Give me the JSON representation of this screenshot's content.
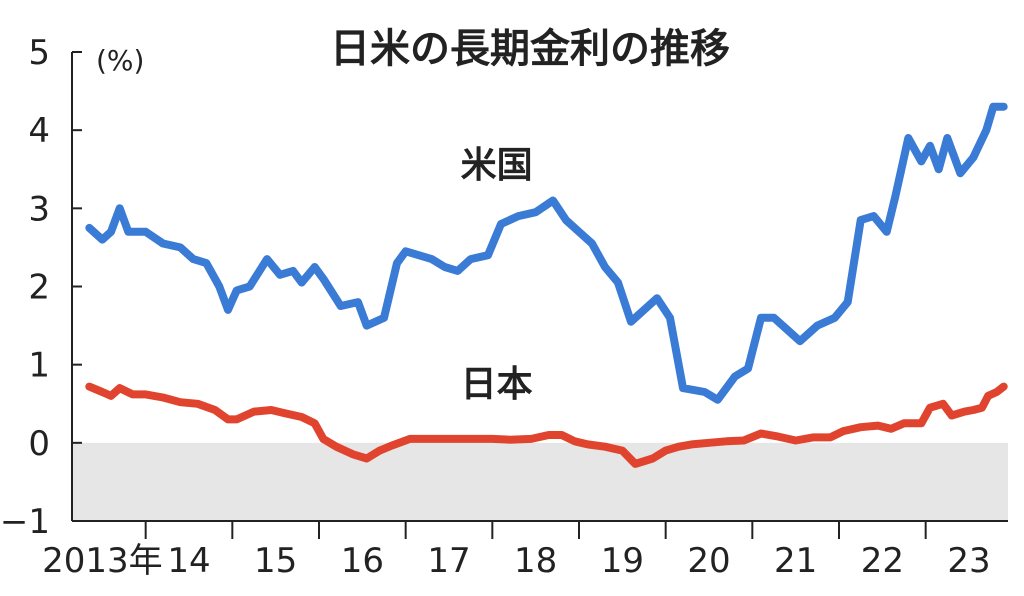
{
  "chart_data": {
    "type": "line",
    "title": "日米の長期金利の推移",
    "unit": "(%)",
    "xlabel": "",
    "ylabel": "",
    "ylim": [
      -1,
      5
    ],
    "xlim": [
      2013.15,
      2023.95
    ],
    "y_ticks": [
      5,
      4,
      3,
      2,
      1,
      0,
      -1
    ],
    "y_tick_labels": [
      "5",
      "4",
      "3",
      "2",
      "1",
      "0",
      "−1"
    ],
    "x_tick_positions": [
      2014,
      2015,
      2016,
      2017,
      2018,
      2019,
      2020,
      2021,
      2022,
      2023
    ],
    "x_labels": [
      {
        "x": 2013.5,
        "text": "2013年"
      },
      {
        "x": 2014.5,
        "text": "14"
      },
      {
        "x": 2015.5,
        "text": "15"
      },
      {
        "x": 2016.5,
        "text": "16"
      },
      {
        "x": 2017.5,
        "text": "17"
      },
      {
        "x": 2018.5,
        "text": "18"
      },
      {
        "x": 2019.5,
        "text": "19"
      },
      {
        "x": 2020.5,
        "text": "20"
      },
      {
        "x": 2021.5,
        "text": "21"
      },
      {
        "x": 2022.5,
        "text": "22"
      },
      {
        "x": 2023.5,
        "text": "23"
      }
    ],
    "negative_region_shaded": true,
    "colors": {
      "us": "#3a7bd5",
      "japan": "#e0442e",
      "negative_fill": "#e6e6e6",
      "axis": "#222222"
    },
    "series": [
      {
        "name": "米国",
        "label_at": {
          "x": 2018.05,
          "y": 3.4
        },
        "points": [
          [
            2013.35,
            2.75
          ],
          [
            2013.5,
            2.6
          ],
          [
            2013.6,
            2.7
          ],
          [
            2013.7,
            3.0
          ],
          [
            2013.8,
            2.7
          ],
          [
            2014.0,
            2.7
          ],
          [
            2014.2,
            2.55
          ],
          [
            2014.4,
            2.5
          ],
          [
            2014.55,
            2.35
          ],
          [
            2014.7,
            2.3
          ],
          [
            2014.85,
            2.0
          ],
          [
            2014.95,
            1.7
          ],
          [
            2015.05,
            1.95
          ],
          [
            2015.2,
            2.0
          ],
          [
            2015.4,
            2.35
          ],
          [
            2015.55,
            2.15
          ],
          [
            2015.7,
            2.2
          ],
          [
            2015.8,
            2.05
          ],
          [
            2015.95,
            2.25
          ],
          [
            2016.05,
            2.1
          ],
          [
            2016.25,
            1.75
          ],
          [
            2016.45,
            1.8
          ],
          [
            2016.55,
            1.5
          ],
          [
            2016.75,
            1.6
          ],
          [
            2016.9,
            2.3
          ],
          [
            2017.0,
            2.45
          ],
          [
            2017.15,
            2.4
          ],
          [
            2017.3,
            2.35
          ],
          [
            2017.45,
            2.25
          ],
          [
            2017.6,
            2.2
          ],
          [
            2017.75,
            2.35
          ],
          [
            2017.95,
            2.4
          ],
          [
            2018.1,
            2.8
          ],
          [
            2018.3,
            2.9
          ],
          [
            2018.5,
            2.95
          ],
          [
            2018.7,
            3.1
          ],
          [
            2018.85,
            2.85
          ],
          [
            2019.0,
            2.7
          ],
          [
            2019.15,
            2.55
          ],
          [
            2019.3,
            2.25
          ],
          [
            2019.45,
            2.05
          ],
          [
            2019.6,
            1.55
          ],
          [
            2019.75,
            1.7
          ],
          [
            2019.9,
            1.85
          ],
          [
            2020.05,
            1.6
          ],
          [
            2020.2,
            0.7
          ],
          [
            2020.45,
            0.65
          ],
          [
            2020.6,
            0.55
          ],
          [
            2020.8,
            0.85
          ],
          [
            2020.95,
            0.95
          ],
          [
            2021.1,
            1.6
          ],
          [
            2021.25,
            1.6
          ],
          [
            2021.4,
            1.45
          ],
          [
            2021.55,
            1.3
          ],
          [
            2021.75,
            1.5
          ],
          [
            2021.95,
            1.6
          ],
          [
            2022.1,
            1.8
          ],
          [
            2022.25,
            2.85
          ],
          [
            2022.4,
            2.9
          ],
          [
            2022.55,
            2.7
          ],
          [
            2022.65,
            3.15
          ],
          [
            2022.8,
            3.9
          ],
          [
            2022.95,
            3.6
          ],
          [
            2023.05,
            3.8
          ],
          [
            2023.15,
            3.5
          ],
          [
            2023.25,
            3.9
          ],
          [
            2023.4,
            3.45
          ],
          [
            2023.55,
            3.65
          ],
          [
            2023.7,
            4.0
          ],
          [
            2023.78,
            4.3
          ],
          [
            2023.9,
            4.3
          ]
        ]
      },
      {
        "name": "日本",
        "label_at": {
          "x": 2018.05,
          "y": 0.6
        },
        "points": [
          [
            2013.35,
            0.72
          ],
          [
            2013.5,
            0.65
          ],
          [
            2013.6,
            0.6
          ],
          [
            2013.7,
            0.7
          ],
          [
            2013.85,
            0.62
          ],
          [
            2014.0,
            0.62
          ],
          [
            2014.2,
            0.58
          ],
          [
            2014.4,
            0.52
          ],
          [
            2014.6,
            0.5
          ],
          [
            2014.8,
            0.42
          ],
          [
            2014.95,
            0.3
          ],
          [
            2015.05,
            0.3
          ],
          [
            2015.25,
            0.4
          ],
          [
            2015.45,
            0.42
          ],
          [
            2015.6,
            0.38
          ],
          [
            2015.8,
            0.33
          ],
          [
            2015.95,
            0.25
          ],
          [
            2016.05,
            0.05
          ],
          [
            2016.2,
            -0.05
          ],
          [
            2016.4,
            -0.15
          ],
          [
            2016.55,
            -0.2
          ],
          [
            2016.7,
            -0.1
          ],
          [
            2016.85,
            -0.03
          ],
          [
            2017.05,
            0.05
          ],
          [
            2017.3,
            0.05
          ],
          [
            2017.5,
            0.05
          ],
          [
            2017.75,
            0.05
          ],
          [
            2018.0,
            0.05
          ],
          [
            2018.2,
            0.04
          ],
          [
            2018.45,
            0.05
          ],
          [
            2018.65,
            0.1
          ],
          [
            2018.8,
            0.1
          ],
          [
            2018.95,
            0.02
          ],
          [
            2019.1,
            -0.02
          ],
          [
            2019.3,
            -0.05
          ],
          [
            2019.5,
            -0.1
          ],
          [
            2019.65,
            -0.27
          ],
          [
            2019.85,
            -0.2
          ],
          [
            2020.0,
            -0.1
          ],
          [
            2020.15,
            -0.05
          ],
          [
            2020.3,
            -0.02
          ],
          [
            2020.5,
            0.0
          ],
          [
            2020.7,
            0.02
          ],
          [
            2020.9,
            0.03
          ],
          [
            2021.1,
            0.12
          ],
          [
            2021.3,
            0.08
          ],
          [
            2021.5,
            0.03
          ],
          [
            2021.7,
            0.07
          ],
          [
            2021.9,
            0.07
          ],
          [
            2022.05,
            0.15
          ],
          [
            2022.25,
            0.2
          ],
          [
            2022.45,
            0.22
          ],
          [
            2022.6,
            0.18
          ],
          [
            2022.75,
            0.25
          ],
          [
            2022.95,
            0.25
          ],
          [
            2023.05,
            0.45
          ],
          [
            2023.2,
            0.5
          ],
          [
            2023.3,
            0.35
          ],
          [
            2023.45,
            0.4
          ],
          [
            2023.55,
            0.42
          ],
          [
            2023.65,
            0.45
          ],
          [
            2023.72,
            0.6
          ],
          [
            2023.82,
            0.65
          ],
          [
            2023.9,
            0.72
          ]
        ]
      }
    ]
  }
}
